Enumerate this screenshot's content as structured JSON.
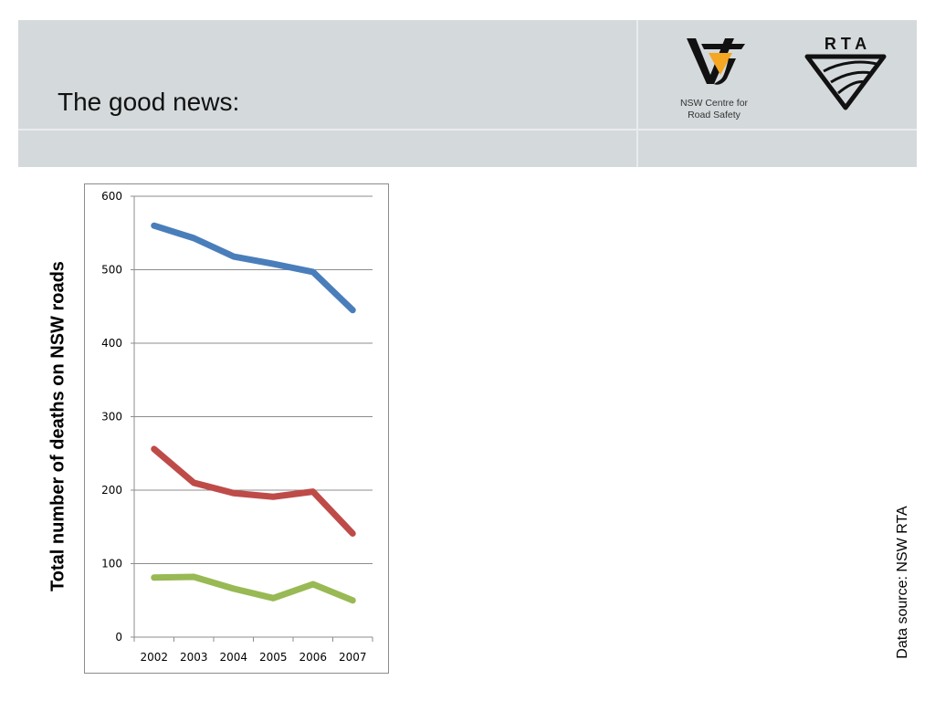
{
  "slide": {
    "title": "The good news:",
    "logos": {
      "nsw_text_line1": "NSW Centre for",
      "nsw_text_line2": "Road Safety",
      "rta_text": "R T A"
    },
    "source": "Data source: NSW RTA"
  },
  "colors": {
    "header_band": "#d4d9db",
    "series_blue": "#4a7ebb",
    "series_red": "#be4b48",
    "series_green": "#98b954",
    "logo_orange": "#f5a623"
  },
  "chart_data": {
    "type": "line",
    "ylabel": "Total number of deaths on NSW roads",
    "xlabel": "",
    "x": [
      "2002",
      "2003",
      "2004",
      "2005",
      "2006",
      "2007"
    ],
    "ylim": [
      0,
      600
    ],
    "yticks": [
      0,
      100,
      200,
      300,
      400,
      500,
      600
    ],
    "grid": true,
    "series": [
      {
        "color": "#4a7ebb",
        "values": [
          560,
          543,
          518,
          508,
          497,
          445
        ]
      },
      {
        "color": "#be4b48",
        "values": [
          256,
          210,
          196,
          191,
          198,
          141
        ]
      },
      {
        "color": "#98b954",
        "values": [
          81,
          82,
          66,
          53,
          72,
          50
        ]
      }
    ]
  }
}
